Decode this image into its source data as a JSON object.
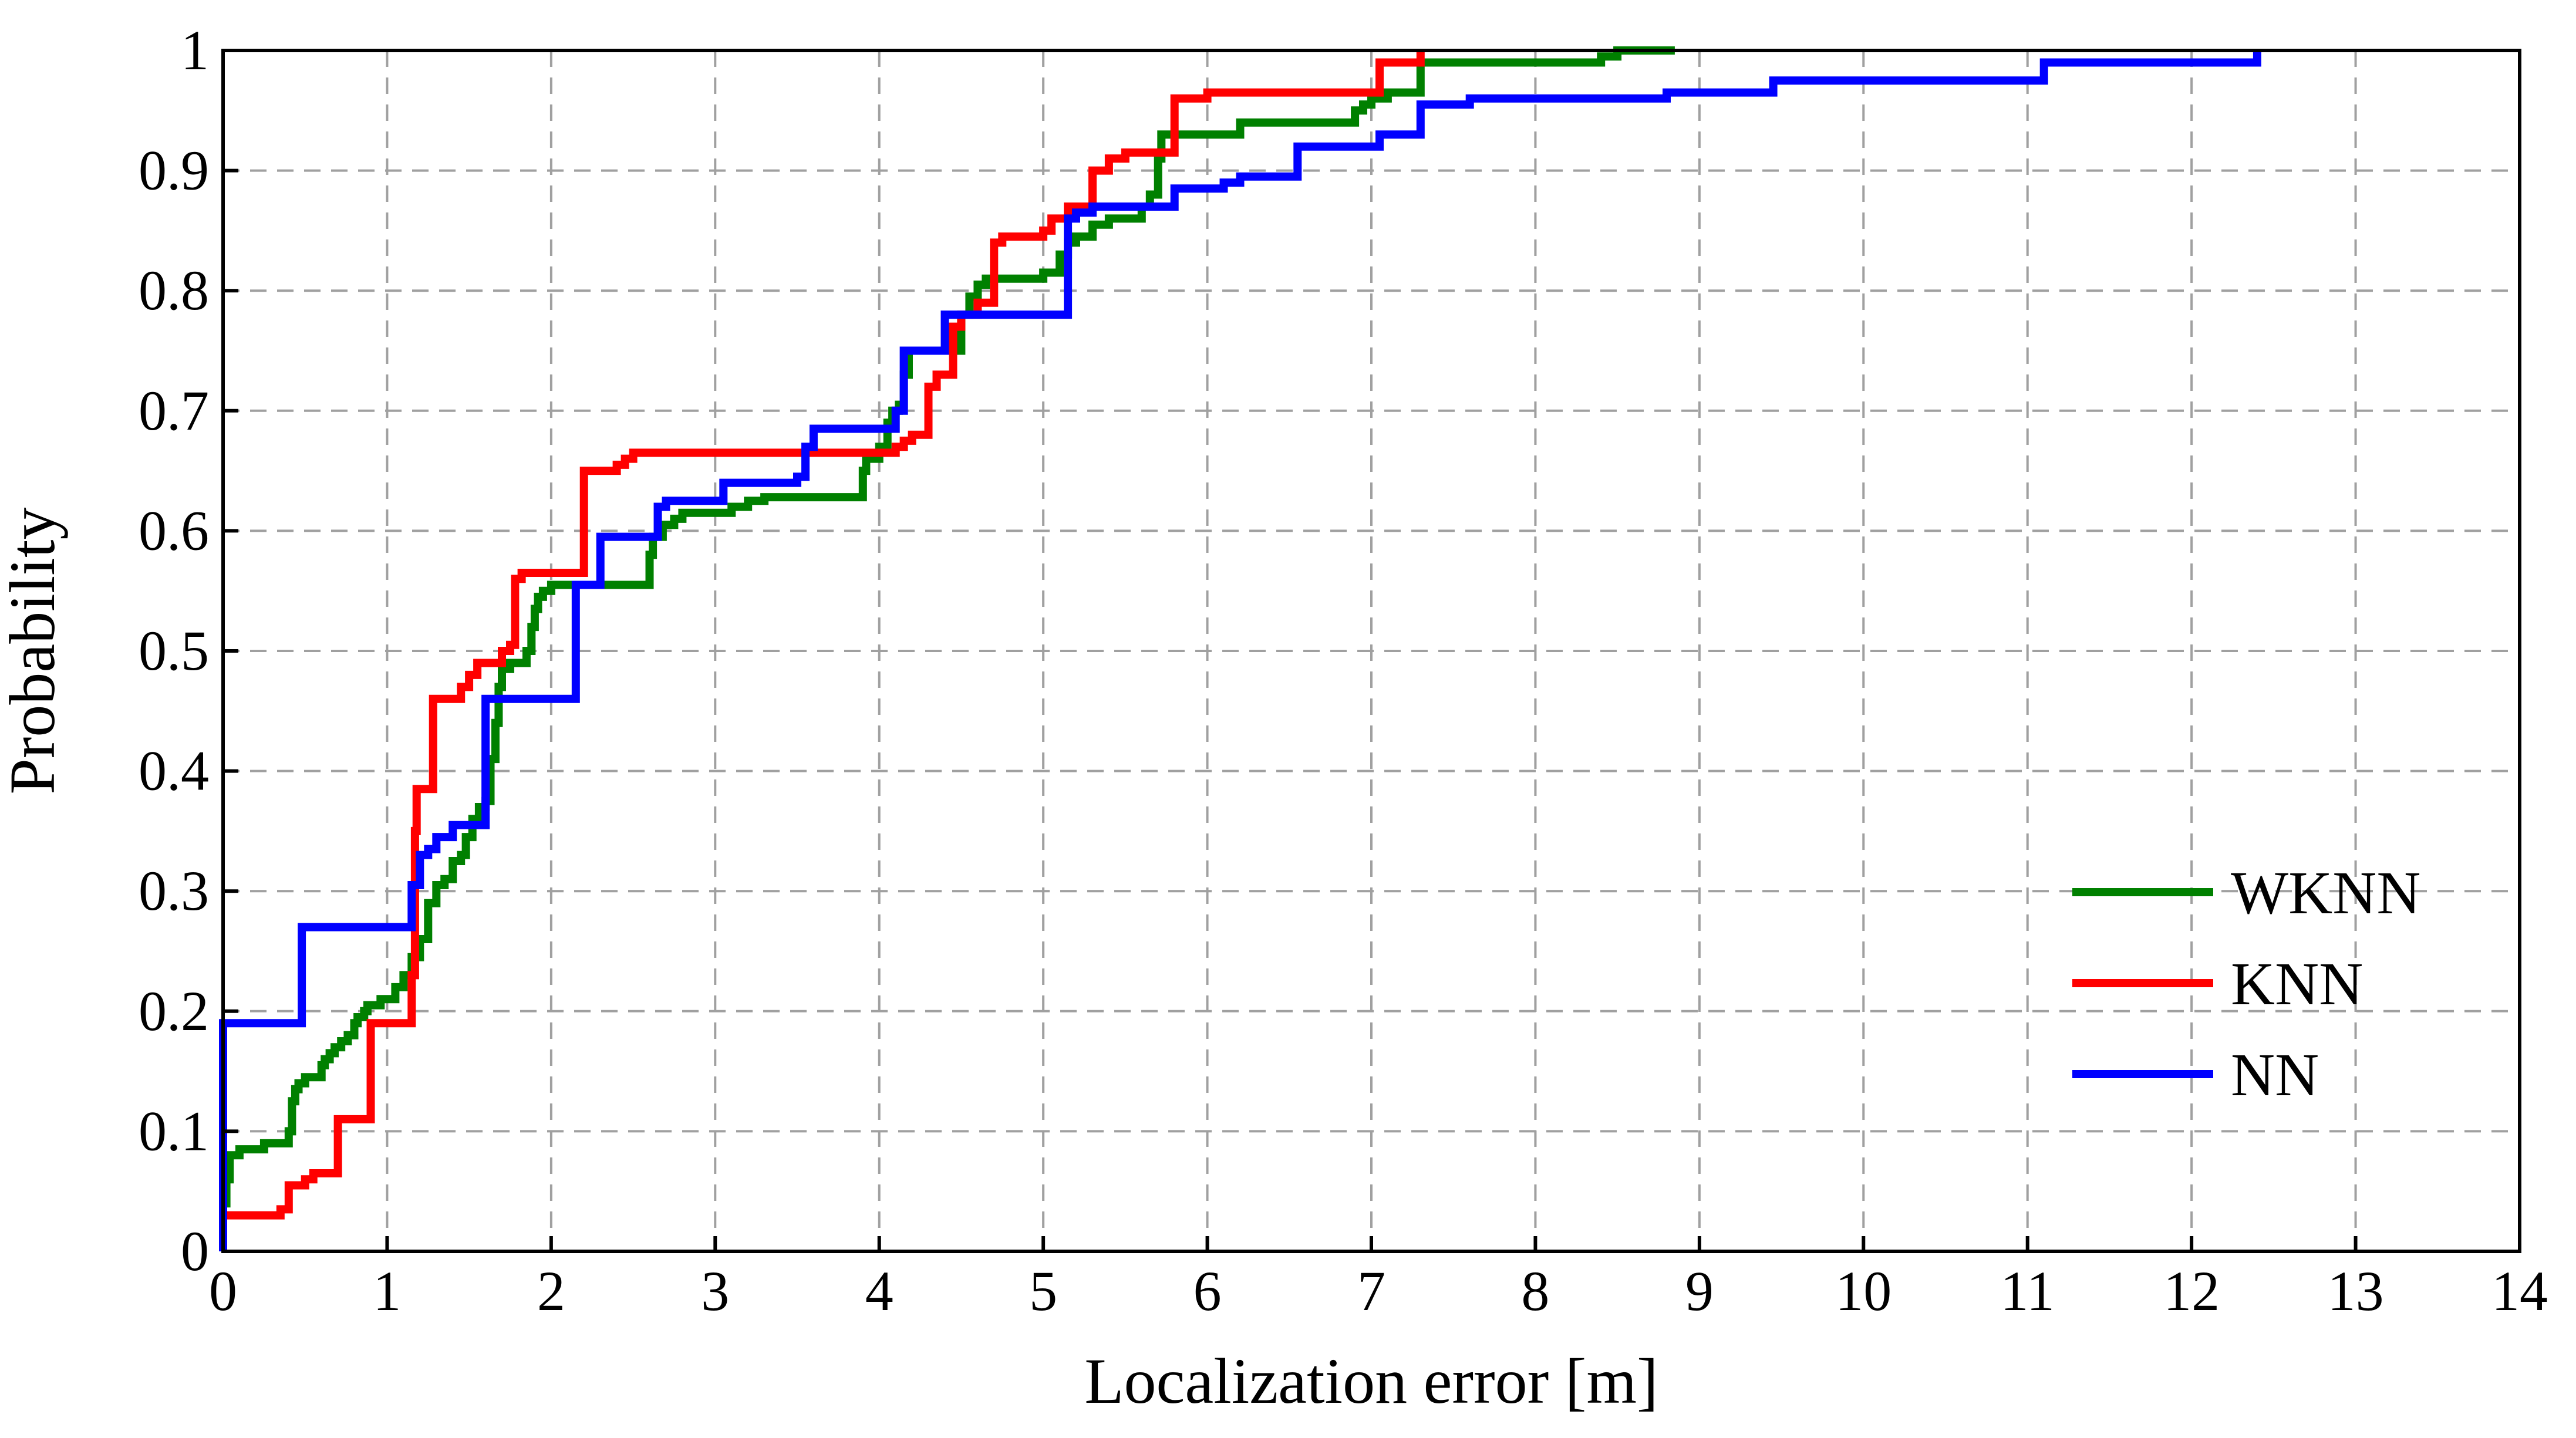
{
  "chart_data": {
    "type": "line",
    "step": true,
    "xlabel": "Localization error [m]",
    "ylabel": "Probability",
    "xlim": [
      0,
      14
    ],
    "ylim": [
      0,
      1
    ],
    "xticks": [
      0,
      1,
      2,
      3,
      4,
      5,
      6,
      7,
      8,
      9,
      10,
      11,
      12,
      13,
      14
    ],
    "yticks": [
      0,
      0.1,
      0.2,
      0.3,
      0.4,
      0.5,
      0.6,
      0.7,
      0.8,
      0.9,
      1
    ],
    "grid": true,
    "legend_position": "bottom-right",
    "series": [
      {
        "name": "WKNN",
        "color": "#008000",
        "points": [
          [
            0,
            0.04
          ],
          [
            0.02,
            0.06
          ],
          [
            0.04,
            0.08
          ],
          [
            0.1,
            0.085
          ],
          [
            0.22,
            0.085
          ],
          [
            0.25,
            0.09
          ],
          [
            0.36,
            0.09
          ],
          [
            0.4,
            0.1
          ],
          [
            0.42,
            0.125
          ],
          [
            0.44,
            0.135
          ],
          [
            0.46,
            0.14
          ],
          [
            0.5,
            0.145
          ],
          [
            0.58,
            0.145
          ],
          [
            0.6,
            0.155
          ],
          [
            0.62,
            0.16
          ],
          [
            0.65,
            0.165
          ],
          [
            0.68,
            0.17
          ],
          [
            0.72,
            0.175
          ],
          [
            0.76,
            0.18
          ],
          [
            0.8,
            0.19
          ],
          [
            0.82,
            0.195
          ],
          [
            0.86,
            0.2
          ],
          [
            0.88,
            0.205
          ],
          [
            0.96,
            0.21
          ],
          [
            1.0,
            0.21
          ],
          [
            1.05,
            0.22
          ],
          [
            1.1,
            0.23
          ],
          [
            1.15,
            0.245
          ],
          [
            1.2,
            0.26
          ],
          [
            1.25,
            0.29
          ],
          [
            1.3,
            0.305
          ],
          [
            1.35,
            0.31
          ],
          [
            1.4,
            0.325
          ],
          [
            1.45,
            0.33
          ],
          [
            1.48,
            0.345
          ],
          [
            1.52,
            0.36
          ],
          [
            1.56,
            0.37
          ],
          [
            1.6,
            0.375
          ],
          [
            1.63,
            0.41
          ],
          [
            1.66,
            0.44
          ],
          [
            1.68,
            0.47
          ],
          [
            1.7,
            0.485
          ],
          [
            1.75,
            0.49
          ],
          [
            1.85,
            0.5
          ],
          [
            1.88,
            0.52
          ],
          [
            1.9,
            0.535
          ],
          [
            1.92,
            0.545
          ],
          [
            1.95,
            0.55
          ],
          [
            2.0,
            0.555
          ],
          [
            2.6,
            0.58
          ],
          [
            2.62,
            0.595
          ],
          [
            2.68,
            0.605
          ],
          [
            2.75,
            0.61
          ],
          [
            2.8,
            0.615
          ],
          [
            3.1,
            0.62
          ],
          [
            3.2,
            0.625
          ],
          [
            3.3,
            0.628
          ],
          [
            3.9,
            0.65
          ],
          [
            3.92,
            0.66
          ],
          [
            4.0,
            0.67
          ],
          [
            4.05,
            0.69
          ],
          [
            4.08,
            0.7
          ],
          [
            4.12,
            0.705
          ],
          [
            4.15,
            0.73
          ],
          [
            4.18,
            0.75
          ],
          [
            4.5,
            0.78
          ],
          [
            4.55,
            0.795
          ],
          [
            4.6,
            0.805
          ],
          [
            4.65,
            0.81
          ],
          [
            5.0,
            0.815
          ],
          [
            5.1,
            0.83
          ],
          [
            5.15,
            0.84
          ],
          [
            5.2,
            0.845
          ],
          [
            5.3,
            0.855
          ],
          [
            5.4,
            0.86
          ],
          [
            5.6,
            0.87
          ],
          [
            5.65,
            0.88
          ],
          [
            5.7,
            0.91
          ],
          [
            5.72,
            0.93
          ],
          [
            6.2,
            0.94
          ],
          [
            6.9,
            0.95
          ],
          [
            6.95,
            0.955
          ],
          [
            7.0,
            0.96
          ],
          [
            7.1,
            0.965
          ],
          [
            7.3,
            0.99
          ],
          [
            8.4,
            0.995
          ],
          [
            8.5,
            1.0
          ],
          [
            8.85,
            1.0
          ]
        ]
      },
      {
        "name": "KNN",
        "color": "#ff0000",
        "points": [
          [
            0,
            0.03
          ],
          [
            0.35,
            0.035
          ],
          [
            0.4,
            0.055
          ],
          [
            0.5,
            0.06
          ],
          [
            0.55,
            0.065
          ],
          [
            0.7,
            0.11
          ],
          [
            0.9,
            0.19
          ],
          [
            1.15,
            0.23
          ],
          [
            1.17,
            0.35
          ],
          [
            1.18,
            0.385
          ],
          [
            1.28,
            0.46
          ],
          [
            1.45,
            0.47
          ],
          [
            1.5,
            0.48
          ],
          [
            1.55,
            0.49
          ],
          [
            1.7,
            0.5
          ],
          [
            1.75,
            0.505
          ],
          [
            1.78,
            0.56
          ],
          [
            1.82,
            0.565
          ],
          [
            2.2,
            0.65
          ],
          [
            2.4,
            0.655
          ],
          [
            2.45,
            0.66
          ],
          [
            2.5,
            0.665
          ],
          [
            3.9,
            0.665
          ],
          [
            4.1,
            0.67
          ],
          [
            4.15,
            0.675
          ],
          [
            4.2,
            0.68
          ],
          [
            4.3,
            0.72
          ],
          [
            4.35,
            0.73
          ],
          [
            4.45,
            0.77
          ],
          [
            4.5,
            0.78
          ],
          [
            4.6,
            0.79
          ],
          [
            4.7,
            0.84
          ],
          [
            4.75,
            0.845
          ],
          [
            5.0,
            0.85
          ],
          [
            5.05,
            0.86
          ],
          [
            5.15,
            0.87
          ],
          [
            5.3,
            0.9
          ],
          [
            5.4,
            0.91
          ],
          [
            5.5,
            0.915
          ],
          [
            5.8,
            0.96
          ],
          [
            6.0,
            0.965
          ],
          [
            7.05,
            0.99
          ],
          [
            7.3,
            1.0
          ]
        ]
      },
      {
        "name": "NN",
        "color": "#0000ff",
        "points": [
          [
            0,
            0.19
          ],
          [
            0.48,
            0.27
          ],
          [
            1.15,
            0.305
          ],
          [
            1.2,
            0.33
          ],
          [
            1.25,
            0.335
          ],
          [
            1.3,
            0.345
          ],
          [
            1.4,
            0.355
          ],
          [
            1.6,
            0.46
          ],
          [
            2.15,
            0.555
          ],
          [
            2.3,
            0.595
          ],
          [
            2.65,
            0.62
          ],
          [
            2.7,
            0.625
          ],
          [
            3.05,
            0.64
          ],
          [
            3.5,
            0.645
          ],
          [
            3.55,
            0.67
          ],
          [
            3.6,
            0.685
          ],
          [
            4.1,
            0.7
          ],
          [
            4.15,
            0.75
          ],
          [
            4.4,
            0.78
          ],
          [
            5.15,
            0.86
          ],
          [
            5.2,
            0.865
          ],
          [
            5.3,
            0.87
          ],
          [
            5.8,
            0.885
          ],
          [
            6.1,
            0.89
          ],
          [
            6.2,
            0.895
          ],
          [
            6.55,
            0.92
          ],
          [
            7.05,
            0.93
          ],
          [
            7.3,
            0.955
          ],
          [
            7.6,
            0.96
          ],
          [
            8.8,
            0.965
          ],
          [
            9.45,
            0.975
          ],
          [
            11.1,
            0.99
          ],
          [
            12.4,
            1.0
          ]
        ]
      }
    ]
  }
}
